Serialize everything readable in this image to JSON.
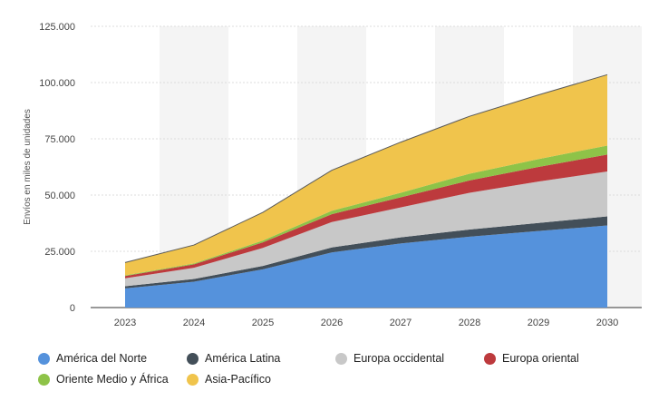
{
  "chart_data": {
    "type": "area",
    "stacked": true,
    "title": "",
    "xlabel": "",
    "ylabel": "Envíos en miles de unidades",
    "x": [
      "2023",
      "2024",
      "2025",
      "2026",
      "2027",
      "2028",
      "2029",
      "2030"
    ],
    "ylim": [
      0,
      125000
    ],
    "yticks": [
      0,
      25000,
      50000,
      75000,
      100000,
      125000
    ],
    "ytick_labels": [
      "0",
      "25.000",
      "50.000",
      "75.000",
      "100.000",
      "125.000"
    ],
    "grid": true,
    "legend_position": "bottom",
    "series": [
      {
        "name": "América del Norte",
        "color": "#5592dc",
        "values": [
          8500,
          11500,
          17000,
          24500,
          28500,
          31500,
          34000,
          36500
        ]
      },
      {
        "name": "América Latina",
        "color": "#434f59",
        "values": [
          1000,
          1200,
          1500,
          2200,
          2700,
          3200,
          3600,
          4000
        ]
      },
      {
        "name": "Europa occidental",
        "color": "#c8c8c8",
        "values": [
          3500,
          5000,
          8000,
          11300,
          13300,
          16300,
          18400,
          20000
        ]
      },
      {
        "name": "Europa oriental",
        "color": "#bd3a3d",
        "values": [
          1000,
          1500,
          2500,
          3500,
          4500,
          5500,
          6500,
          7500
        ]
      },
      {
        "name": "Oriente Medio y África",
        "color": "#8ec348",
        "values": [
          300,
          400,
          800,
          1500,
          2000,
          3000,
          3500,
          4000
        ]
      },
      {
        "name": "Asia-Pacífico",
        "color": "#f0c44c",
        "values": [
          5700,
          8200,
          12500,
          18000,
          22500,
          25500,
          28500,
          31500
        ]
      }
    ]
  }
}
